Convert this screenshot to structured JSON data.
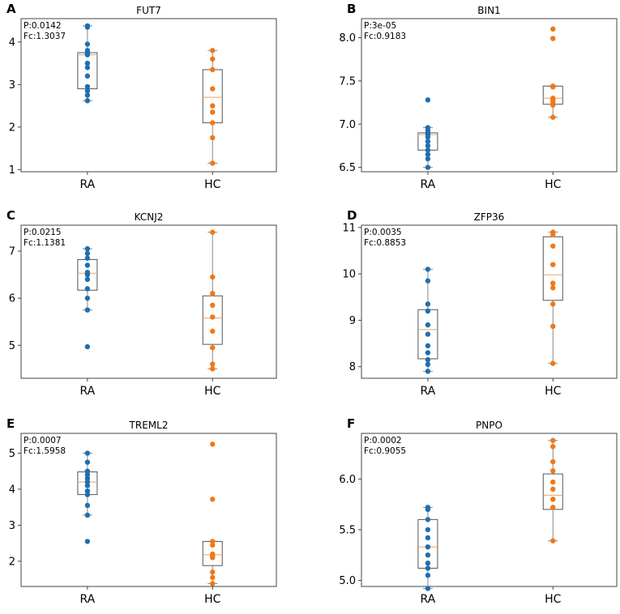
{
  "colors": {
    "ra": "#1f6fb0",
    "hc": "#f07818",
    "median": "#f5a25d",
    "box": "#555555",
    "whisker": "#888888"
  },
  "chart_data": [
    {
      "panel": "A",
      "type": "box-strip",
      "title": "FUT7",
      "annotation": [
        "P:0.0142",
        "Fc:1.3037"
      ],
      "ylim": [
        0.95,
        4.55
      ],
      "yticks": [
        1,
        2,
        3,
        4
      ],
      "categories": [
        "RA",
        "HC"
      ],
      "series": [
        {
          "name": "RA",
          "box": {
            "q1": 2.9,
            "median": 3.7,
            "q3": 3.75,
            "lo": 2.62,
            "hi": 4.38
          },
          "points": [
            4.38,
            4.35,
            3.95,
            3.8,
            3.75,
            3.72,
            3.7,
            3.5,
            3.4,
            3.2,
            2.95,
            2.85,
            2.75,
            2.62
          ]
        },
        {
          "name": "HC",
          "box": {
            "q1": 2.1,
            "median": 2.7,
            "q3": 3.35,
            "lo": 1.15,
            "hi": 3.8
          },
          "points": [
            3.8,
            3.6,
            3.35,
            2.9,
            2.5,
            2.35,
            2.1,
            1.75,
            1.15
          ]
        }
      ]
    },
    {
      "panel": "B",
      "type": "box-strip",
      "title": "BIN1",
      "annotation": [
        "P:3e-05",
        "Fc:0.9183"
      ],
      "ylim": [
        6.45,
        8.22
      ],
      "yticks": [
        6.5,
        7.0,
        7.5,
        8.0
      ],
      "categories": [
        "RA",
        "HC"
      ],
      "series": [
        {
          "name": "RA",
          "box": {
            "q1": 6.7,
            "median": 6.88,
            "q3": 6.9,
            "lo": 6.5,
            "hi": 6.96
          },
          "points": [
            7.28,
            6.96,
            6.93,
            6.9,
            6.88,
            6.85,
            6.8,
            6.75,
            6.7,
            6.65,
            6.6,
            6.5
          ]
        },
        {
          "name": "HC",
          "box": {
            "q1": 7.23,
            "median": 7.3,
            "q3": 7.44,
            "lo": 7.08,
            "hi": 7.44
          },
          "points": [
            8.1,
            7.99,
            7.44,
            7.43,
            7.3,
            7.28,
            7.25,
            7.22,
            7.08
          ]
        }
      ]
    },
    {
      "panel": "C",
      "type": "box-strip",
      "title": "KCNJ2",
      "annotation": [
        "P:0.0215",
        "Fc:1.1381"
      ],
      "ylim": [
        4.3,
        7.55
      ],
      "yticks": [
        5,
        6,
        7
      ],
      "categories": [
        "RA",
        "HC"
      ],
      "series": [
        {
          "name": "RA",
          "box": {
            "q1": 6.17,
            "median": 6.53,
            "q3": 6.82,
            "lo": 5.75,
            "hi": 7.05
          },
          "points": [
            7.05,
            6.95,
            6.85,
            6.7,
            6.55,
            6.5,
            6.4,
            6.2,
            6.0,
            5.75,
            4.97
          ]
        },
        {
          "name": "HC",
          "box": {
            "q1": 5.02,
            "median": 5.58,
            "q3": 6.05,
            "lo": 4.5,
            "hi": 7.4
          },
          "points": [
            7.4,
            6.45,
            6.1,
            5.85,
            5.6,
            5.3,
            4.95,
            4.6,
            4.5
          ]
        }
      ]
    },
    {
      "panel": "D",
      "type": "box-strip",
      "title": "ZFP36",
      "annotation": [
        "P:0.0035",
        "Fc:0.8853"
      ],
      "ylim": [
        7.75,
        11.05
      ],
      "yticks": [
        8,
        9,
        10,
        11
      ],
      "categories": [
        "RA",
        "HC"
      ],
      "series": [
        {
          "name": "RA",
          "box": {
            "q1": 8.17,
            "median": 8.8,
            "q3": 9.23,
            "lo": 7.9,
            "hi": 10.1
          },
          "points": [
            10.1,
            9.85,
            9.35,
            9.2,
            8.9,
            8.7,
            8.45,
            8.3,
            8.15,
            8.05,
            7.9
          ]
        },
        {
          "name": "HC",
          "box": {
            "q1": 9.43,
            "median": 9.98,
            "q3": 10.8,
            "lo": 8.07,
            "hi": 10.9
          },
          "points": [
            10.9,
            10.85,
            10.6,
            10.2,
            9.8,
            9.7,
            9.35,
            8.87,
            8.07
          ]
        }
      ]
    },
    {
      "panel": "E",
      "type": "box-strip",
      "title": "TREML2",
      "annotation": [
        "P:0.0007",
        "Fc:1.5958"
      ],
      "ylim": [
        1.3,
        5.55
      ],
      "yticks": [
        2,
        3,
        4,
        5
      ],
      "categories": [
        "RA",
        "HC"
      ],
      "series": [
        {
          "name": "RA",
          "box": {
            "q1": 3.85,
            "median": 4.2,
            "q3": 4.48,
            "lo": 3.28,
            "hi": 5.0
          },
          "points": [
            5.0,
            4.75,
            4.5,
            4.4,
            4.3,
            4.2,
            4.1,
            3.95,
            3.85,
            3.55,
            3.28,
            2.55
          ]
        },
        {
          "name": "HC",
          "box": {
            "q1": 1.88,
            "median": 2.18,
            "q3": 2.55,
            "lo": 1.38,
            "hi": 2.55
          },
          "points": [
            5.25,
            3.72,
            2.55,
            2.45,
            2.2,
            2.15,
            2.1,
            1.7,
            1.55,
            1.38
          ]
        }
      ]
    },
    {
      "panel": "F",
      "type": "box-strip",
      "title": "PNPO",
      "annotation": [
        "P:0.0002",
        "Fc:0.9055"
      ],
      "ylim": [
        4.94,
        6.45
      ],
      "yticks": [
        5.0,
        5.5,
        6.0
      ],
      "categories": [
        "RA",
        "HC"
      ],
      "series": [
        {
          "name": "RA",
          "box": {
            "q1": 5.12,
            "median": 5.33,
            "q3": 5.6,
            "lo": 4.92,
            "hi": 5.72
          },
          "points": [
            5.72,
            5.7,
            5.6,
            5.5,
            5.42,
            5.33,
            5.25,
            5.17,
            5.12,
            5.05,
            4.92
          ]
        },
        {
          "name": "HC",
          "box": {
            "q1": 5.7,
            "median": 5.84,
            "q3": 6.05,
            "lo": 5.39,
            "hi": 6.38
          },
          "points": [
            6.38,
            6.32,
            6.17,
            6.08,
            5.97,
            5.9,
            5.8,
            5.72,
            5.39
          ]
        }
      ]
    }
  ]
}
